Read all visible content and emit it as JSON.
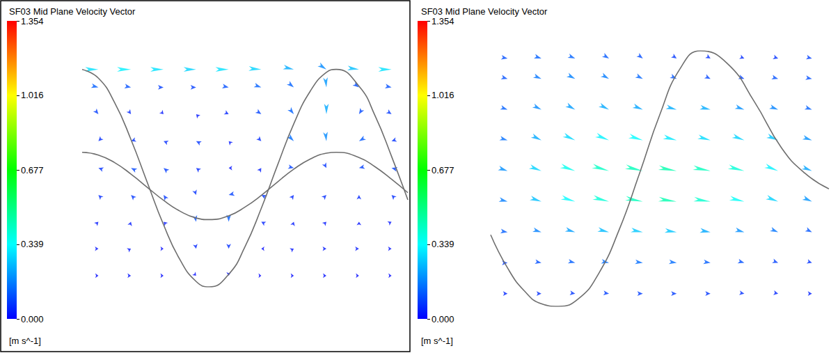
{
  "chart_data": [
    {
      "type": "vector",
      "title": "SF03 Mid Plane Velocity Vector",
      "xlim": [
        0,
        1
      ],
      "ylim": [
        0,
        1
      ],
      "tick_labels": false,
      "grid_x": [
        0.05,
        0.15,
        0.25,
        0.35,
        0.45,
        0.55,
        0.65,
        0.75,
        0.85,
        0.95
      ],
      "grid_y": [
        0.97,
        0.89,
        0.77,
        0.65,
        0.53,
        0.41,
        0.29,
        0.17,
        0.05
      ],
      "u": [
        [
          0.3,
          0.32,
          0.3,
          0.28,
          0.3,
          0.28,
          0.22,
          0.15,
          0.25,
          0.3
        ],
        [
          0.12,
          0.1,
          0.08,
          0.08,
          0.1,
          0.12,
          0.1,
          0.02,
          0.08,
          0.1
        ],
        [
          0.05,
          0.03,
          0.02,
          -0.02,
          0.04,
          0.07,
          0.08,
          0.0,
          -0.05,
          0.06
        ],
        [
          -0.04,
          -0.06,
          -0.05,
          -0.06,
          -0.02,
          0.04,
          0.1,
          0.02,
          -0.1,
          -0.06
        ],
        [
          -0.06,
          -0.08,
          -0.06,
          -0.04,
          -0.02,
          0.02,
          0.08,
          0.03,
          -0.08,
          -0.08
        ],
        [
          -0.04,
          -0.05,
          -0.04,
          0.02,
          -0.08,
          -0.06,
          0.03,
          0.04,
          0.0,
          -0.04
        ],
        [
          0.02,
          0.01,
          -0.02,
          0.02,
          0.0,
          -0.04,
          0.01,
          0.02,
          0.0,
          0.02
        ],
        [
          0.02,
          0.02,
          0.01,
          0.01,
          0.0,
          -0.01,
          0.02,
          0.03,
          0.03,
          0.02
        ],
        [
          0.01,
          0.02,
          0.01,
          0.01,
          0.0,
          0.0,
          0.01,
          0.02,
          0.01,
          0.01
        ]
      ],
      "v": [
        [
          0.0,
          0.0,
          0.0,
          0.0,
          0.0,
          -0.02,
          -0.05,
          -0.1,
          -0.03,
          0.0
        ],
        [
          -0.03,
          -0.02,
          0.0,
          0.0,
          -0.02,
          -0.04,
          -0.08,
          -0.2,
          -0.06,
          -0.02
        ],
        [
          -0.06,
          -0.04,
          -0.02,
          0.02,
          -0.02,
          -0.05,
          -0.1,
          -0.22,
          -0.08,
          -0.04
        ],
        [
          -0.04,
          -0.02,
          0.02,
          0.03,
          0.02,
          -0.04,
          -0.1,
          -0.18,
          -0.06,
          -0.02
        ],
        [
          0.02,
          0.04,
          0.05,
          0.03,
          0.0,
          0.03,
          -0.02,
          -0.06,
          -0.02,
          0.02
        ],
        [
          0.04,
          0.05,
          0.06,
          -0.06,
          -0.02,
          0.03,
          0.04,
          0.04,
          0.05,
          0.04
        ],
        [
          0.02,
          0.03,
          0.02,
          -0.1,
          -0.12,
          0.02,
          0.03,
          0.02,
          0.02,
          0.01
        ],
        [
          0.0,
          0.01,
          0.0,
          -0.05,
          -0.06,
          0.0,
          0.01,
          0.0,
          0.0,
          0.0
        ],
        [
          0.0,
          0.0,
          0.0,
          -0.01,
          -0.02,
          0.0,
          0.0,
          0.0,
          0.0,
          0.0
        ]
      ],
      "outlines": [
        {
          "x": [
            0,
            0.05,
            0.1,
            0.15,
            0.2,
            0.25,
            0.3,
            0.35,
            0.39,
            0.45,
            0.5,
            0.55,
            0.6,
            0.65,
            0.7,
            0.75,
            0.78,
            0.85,
            0.9,
            0.95,
            1.0
          ],
          "y": [
            0.97,
            0.931,
            0.821,
            0.657,
            0.466,
            0.277,
            0.122,
            0.024,
            0.0,
            0.056,
            0.179,
            0.35,
            0.543,
            0.728,
            0.872,
            0.957,
            0.97,
            0.895,
            0.761,
            0.582,
            0.388
          ]
        },
        {
          "x": [
            0,
            0.05,
            0.1,
            0.15,
            0.2,
            0.25,
            0.3,
            0.35,
            0.39,
            0.45,
            0.5,
            0.55,
            0.6,
            0.65,
            0.7,
            0.75,
            0.78,
            0.85,
            0.9,
            0.95,
            1.0
          ],
          "y": [
            0.6,
            0.588,
            0.554,
            0.503,
            0.444,
            0.386,
            0.338,
            0.307,
            0.3,
            0.317,
            0.356,
            0.408,
            0.468,
            0.525,
            0.57,
            0.596,
            0.6,
            0.577,
            0.535,
            0.48,
            0.42
          ]
        }
      ],
      "colorbar": {
        "range": [
          0,
          1.354
        ],
        "ticks": [
          {
            "value": 0,
            "label": "0.000"
          },
          0.339,
          0.677,
          1.016,
          1.354
        ],
        "colors": [
          "#0000ff",
          "#00ffff",
          "#00ff00",
          "#ffff00",
          "#ff0000"
        ],
        "unit": "[m s^-1]"
      }
    },
    {
      "type": "vector",
      "title": "SF03 Mid Plane Velocity Vector",
      "xlim": [
        0,
        1
      ],
      "ylim": [
        0,
        1
      ],
      "tick_labels": false,
      "grid_x": [
        0.05,
        0.15,
        0.25,
        0.35,
        0.45,
        0.55,
        0.65,
        0.75,
        0.85,
        0.95
      ],
      "grid_y": [
        0.97,
        0.89,
        0.77,
        0.65,
        0.53,
        0.41,
        0.29,
        0.17,
        0.05
      ],
      "u": [
        [
          0.1,
          0.12,
          0.12,
          0.1,
          0.08,
          0.06,
          0.05,
          0.05,
          0.06,
          0.08
        ],
        [
          0.1,
          0.14,
          0.15,
          0.14,
          0.12,
          0.1,
          0.08,
          0.08,
          0.1,
          0.1
        ],
        [
          0.12,
          0.16,
          0.18,
          0.2,
          0.2,
          0.22,
          0.22,
          0.18,
          0.16,
          0.12
        ],
        [
          0.14,
          0.2,
          0.26,
          0.3,
          0.32,
          0.3,
          0.28,
          0.26,
          0.24,
          0.18
        ],
        [
          0.18,
          0.26,
          0.34,
          0.4,
          0.42,
          0.44,
          0.42,
          0.38,
          0.3,
          0.2
        ],
        [
          0.16,
          0.24,
          0.32,
          0.38,
          0.42,
          0.44,
          0.4,
          0.34,
          0.26,
          0.18
        ],
        [
          0.12,
          0.16,
          0.2,
          0.24,
          0.26,
          0.26,
          0.22,
          0.18,
          0.14,
          0.1
        ],
        [
          0.08,
          0.1,
          0.12,
          0.14,
          0.14,
          0.14,
          0.12,
          0.1,
          0.08,
          0.06
        ],
        [
          0.05,
          0.06,
          0.07,
          0.08,
          0.08,
          0.08,
          0.07,
          0.06,
          0.05,
          0.04
        ]
      ],
      "v": [
        [
          -0.02,
          -0.04,
          -0.05,
          -0.06,
          -0.06,
          -0.04,
          -0.03,
          -0.02,
          -0.02,
          -0.02
        ],
        [
          -0.03,
          -0.06,
          -0.08,
          -0.08,
          -0.06,
          -0.05,
          -0.04,
          -0.03,
          -0.03,
          -0.02
        ],
        [
          -0.04,
          -0.08,
          -0.1,
          -0.1,
          -0.08,
          -0.06,
          -0.05,
          -0.06,
          -0.06,
          -0.04
        ],
        [
          -0.04,
          -0.1,
          -0.12,
          -0.12,
          -0.1,
          -0.08,
          -0.08,
          -0.1,
          -0.1,
          -0.06
        ],
        [
          -0.06,
          -0.1,
          -0.12,
          -0.12,
          -0.1,
          -0.08,
          -0.08,
          -0.1,
          -0.12,
          -0.08
        ],
        [
          -0.04,
          -0.08,
          -0.1,
          -0.1,
          -0.08,
          -0.06,
          -0.06,
          -0.08,
          -0.1,
          -0.08
        ],
        [
          -0.02,
          -0.05,
          -0.06,
          -0.06,
          -0.05,
          -0.04,
          -0.04,
          -0.05,
          -0.06,
          -0.05
        ],
        [
          0.0,
          -0.02,
          -0.03,
          -0.03,
          -0.02,
          -0.02,
          -0.02,
          -0.03,
          -0.03,
          -0.02
        ],
        [
          0.0,
          0.0,
          -0.01,
          -0.01,
          0.0,
          0.0,
          0.0,
          -0.01,
          -0.01,
          0.0
        ]
      ],
      "outlines": [
        {
          "x": [
            0,
            0.05,
            0.1,
            0.15,
            0.2,
            0.26,
            0.32,
            0.38,
            0.44,
            0.5,
            0.56,
            0.62,
            0.7,
            0.78,
            0.86,
            0.93,
            1.0
          ],
          "y": [
            0.28,
            0.15,
            0.06,
            0.01,
            0.0,
            0.03,
            0.13,
            0.3,
            0.52,
            0.75,
            0.93,
            1.0,
            0.95,
            0.8,
            0.62,
            0.52,
            0.46
          ]
        }
      ],
      "colorbar": {
        "range": [
          0,
          1.354
        ],
        "ticks": [
          {
            "value": 0,
            "label": "0.000"
          },
          0.339,
          0.677,
          1.016,
          1.354
        ],
        "colors": [
          "#0000ff",
          "#00ffff",
          "#00ff00",
          "#ffff00",
          "#ff0000"
        ],
        "unit": "[m s^-1]"
      }
    }
  ]
}
